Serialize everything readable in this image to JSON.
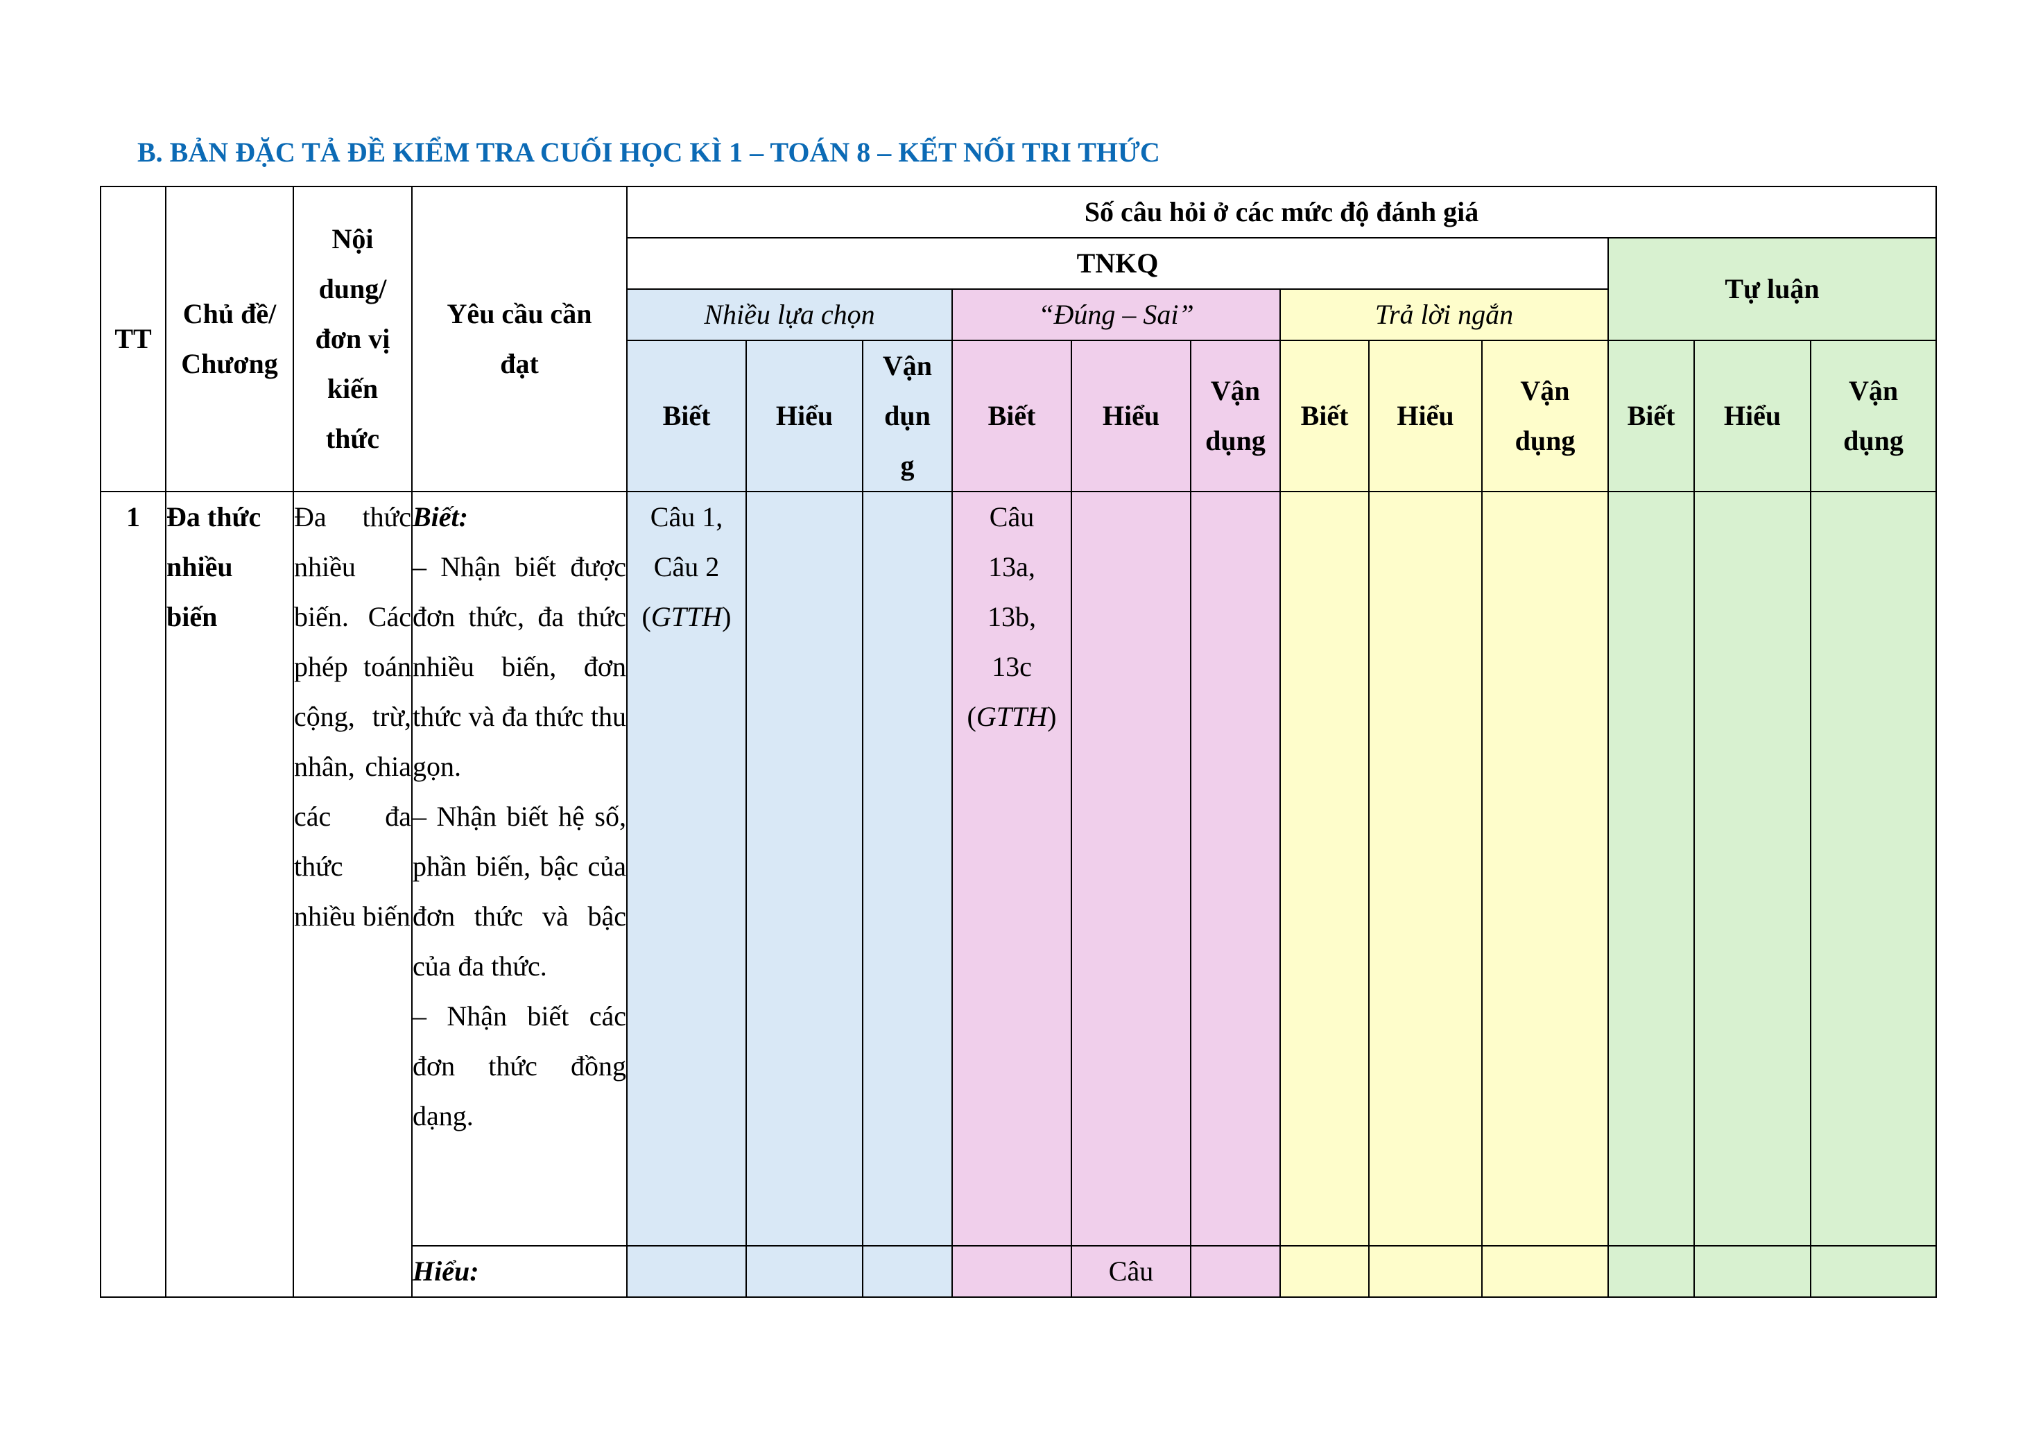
{
  "title": "B. BẢN ĐẶC TẢ ĐỀ KIỂM TRA CUỐI HỌC KÌ 1 – TOÁN 8 – KẾT NỐI TRI THỨC",
  "colors": {
    "title": "#0b6ab5",
    "multiple_choice": "#d9e8f6",
    "true_false": "#f0cfeb",
    "short_answer": "#fefdcb",
    "essay": "#d8f1d0"
  },
  "header": {
    "tt": "TT",
    "topic": "Chủ đề/\nChương",
    "unit": "Nội\ndung/\nđơn vị\nkiến\nthức",
    "requirement": "Yêu cầu cần\nđạt",
    "levels_group": "Số câu hỏi ở các mức độ đánh giá",
    "tnkq": "TNKQ",
    "essay": "Tự luận",
    "multiple_choice": "Nhiều lựa chọn",
    "true_false": "“Đúng – Sai”",
    "short_answer": "Trả lời ngắn",
    "mc_biet": "Biết",
    "mc_hieu": "Hiểu",
    "mc_vandung": "Vận\ndụn\ng",
    "tf_biet": "Biết",
    "tf_hieu": "Hiểu",
    "tf_vandung": "Vận\ndụng",
    "sa_biet": "Biết",
    "sa_hieu": "Hiểu",
    "sa_vandung": "Vận\ndụng",
    "es_biet": "Biết",
    "es_hieu": "Hiểu",
    "es_vandung": "Vận\ndụng"
  },
  "rows": [
    {
      "tt": "1",
      "topic": "Đa thức\nnhiều\nbiến",
      "unit": "Đa thức nhiều biến. Các phép toán cộng, trừ, nhân, chia các đa thức nhiều biến",
      "know": {
        "label": "Biết:",
        "text": "– Nhận biết được đơn thức, đa thức nhiều biến, đơn thức và đa thức thu gọn.\n– Nhận biết hệ số, phần biến, bậc của đơn thức và bậc của đa thức.\n– Nhận biết các đơn thức đồng dạng.",
        "mc_biet_text": "Câu 1,\nCâu 2\n(",
        "mc_biet_italic": "GTTH",
        "mc_biet_close": ")",
        "tf_biet_text": "Câu\n13a,\n13b,\n13c\n(",
        "tf_biet_italic": "GTTH",
        "tf_biet_close": ")"
      },
      "understand": {
        "label": "Hiểu:",
        "tf_hieu": "Câu"
      }
    }
  ]
}
